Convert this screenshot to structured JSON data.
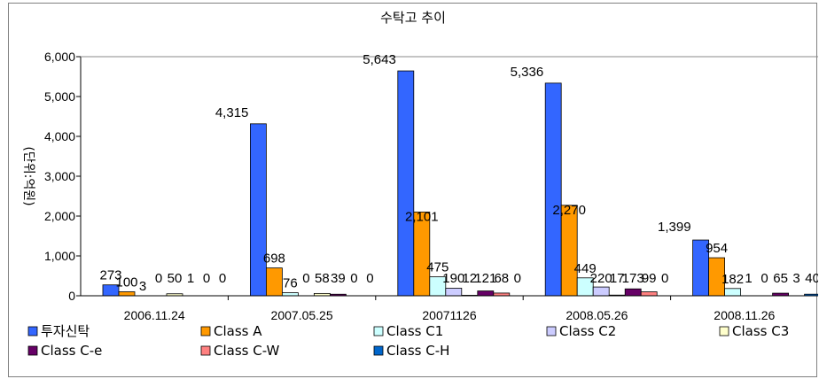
{
  "chart_data": {
    "type": "bar",
    "title": "수탁고 추이",
    "ylabel": "(단위:억원)",
    "xlabel": "",
    "ylim": [
      0,
      6000
    ],
    "yticks": [
      "0",
      "1,000",
      "2,000",
      "3,000",
      "4,000",
      "5,000",
      "6,000"
    ],
    "categories": [
      "2006.11.24",
      "2007.05.25",
      "20071126",
      "2008.05.26",
      "2008.11.26"
    ],
    "legend_position": "bottom",
    "grid": false,
    "series": [
      {
        "name": "투자신탁",
        "color": "#3366ff",
        "values": [
          273,
          4315,
          5643,
          5336,
          1399
        ],
        "labels": [
          "273",
          "4,315",
          "5,643",
          "5,336",
          "1,399"
        ]
      },
      {
        "name": "Class A",
        "color": "#ff9900",
        "values": [
          100,
          698,
          2101,
          2270,
          954
        ],
        "labels": [
          "100",
          "698",
          "2,101",
          "2,270",
          "954"
        ]
      },
      {
        "name": "Class C1",
        "color": "#ccffff",
        "values": [
          3,
          76,
          475,
          449,
          182
        ],
        "labels": [
          "3",
          "76",
          "475",
          "449",
          "182"
        ]
      },
      {
        "name": "Class C2",
        "color": "#ccccff",
        "values": [
          0,
          0,
          190,
          220,
          1
        ],
        "labels": [
          "0",
          "0",
          "190",
          "220",
          "1"
        ]
      },
      {
        "name": "Class C3",
        "color": "#ffffcc",
        "values": [
          50,
          58,
          12,
          17,
          0
        ],
        "labels": [
          "50",
          "58",
          "12",
          "17",
          "0"
        ]
      },
      {
        "name": "Class C-e",
        "color": "#660066",
        "values": [
          1,
          39,
          121,
          173,
          65
        ],
        "labels": [
          "1",
          "39",
          "121",
          "173",
          "65"
        ]
      },
      {
        "name": "Class C-W",
        "color": "#ff8080",
        "values": [
          0,
          0,
          68,
          99,
          3
        ],
        "labels": [
          "0",
          "0",
          "68",
          "99",
          "3"
        ]
      },
      {
        "name": "Class C-H",
        "color": "#0066cc",
        "values": [
          0,
          0,
          0,
          0,
          40
        ],
        "labels": [
          "0",
          "0",
          "0",
          "0",
          "40"
        ]
      }
    ]
  }
}
